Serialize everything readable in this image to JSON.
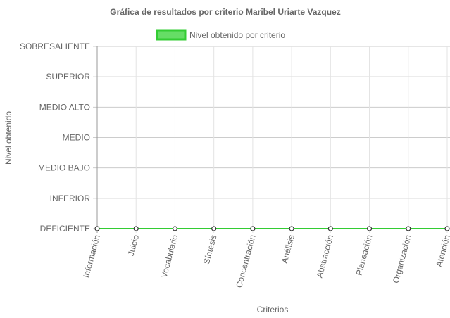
{
  "colors": {
    "series_line": "#33cc33",
    "series_fill": "#66dd66",
    "grid": "#cccccc",
    "axis": "#999999",
    "text": "#666666",
    "point_fill": "#ffffff",
    "point_stroke": "#333333"
  },
  "chart_data": {
    "type": "line",
    "title": "Gráfica de resultados por criterio Maribel Uriarte Vazquez",
    "xlabel": "Criterios",
    "ylabel": "Nivel obtenido",
    "legend_position": "top",
    "grid": true,
    "categories": [
      "Información",
      "Juicio",
      "Vocabulario",
      "Síntesis",
      "Concentración",
      "Análisis",
      "Abstracción",
      "Planeación",
      "Organización",
      "Atención"
    ],
    "y_levels": [
      "DEFICIENTE",
      "INFERIOR",
      "MEDIO BAJO",
      "MEDIO",
      "MEDIO ALTO",
      "SUPERIOR",
      "SOBRESALIENTE"
    ],
    "ylim": [
      0,
      6
    ],
    "series": [
      {
        "name": "Nivel obtenido por criterio",
        "values": [
          0,
          0,
          0,
          0,
          0,
          0,
          0,
          0,
          0,
          0
        ]
      }
    ]
  }
}
